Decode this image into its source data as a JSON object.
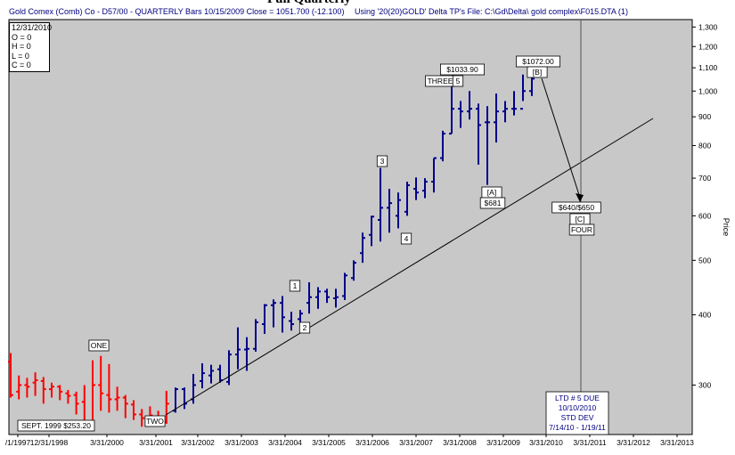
{
  "header": {
    "title": "Full Quarterly",
    "left_text": "Gold Comex (Comb) Co - D57/00 - QUARTERLY Bars  10/15/2009 Close = 1051.700 (-12.100)",
    "right_text": "Using '20(20)GOLD' Delta TP's    File: C:\\Gd\\Delta\\ gold complex\\F015.DTA (1)"
  },
  "ohlc_box": {
    "date": "12/31/2010",
    "o": "O = 0",
    "h": "H = 0",
    "l": "L = 0",
    "c": "C = 0"
  },
  "chart_data": {
    "type": "ohlc",
    "title": "",
    "ylabel": "Price",
    "xlabel": "",
    "y_scale": "log",
    "ylim": [
      245,
      1340
    ],
    "y_ticks": [
      300,
      400,
      500,
      600,
      700,
      800,
      900,
      1000,
      1100,
      1200,
      1300
    ],
    "y_tick_labels": [
      "300",
      "400",
      "500",
      "600",
      "700",
      "800",
      "900",
      "1,000",
      "1,100",
      "1,200",
      "1,300"
    ],
    "x_tick_labels": [
      "/1/1997",
      "12/31/1998",
      "3/31/2000",
      "3/31/2001",
      "3/31/2002",
      "3/31/2003",
      "3/31/2004",
      "3/31/2005",
      "3/31/2006",
      "3/31/2007",
      "3/31/2008",
      "3/31/2009",
      "3/31/2010",
      "3/31/2011",
      "3/31/2012",
      "3/31/2013"
    ],
    "colors": {
      "down_phase": "#ff0000",
      "up_phase": "#00008b",
      "background": "#c8c8c8"
    },
    "bars_red": [
      {
        "o": 330,
        "h": 342,
        "l": 285,
        "c": 288
      },
      {
        "o": 292,
        "h": 312,
        "l": 283,
        "c": 300
      },
      {
        "o": 300,
        "h": 309,
        "l": 285,
        "c": 298
      },
      {
        "o": 303,
        "h": 316,
        "l": 287,
        "c": 306
      },
      {
        "o": 305,
        "h": 310,
        "l": 278,
        "c": 295
      },
      {
        "o": 295,
        "h": 303,
        "l": 285,
        "c": 298
      },
      {
        "o": 298,
        "h": 300,
        "l": 282,
        "c": 292
      },
      {
        "o": 290,
        "h": 294,
        "l": 278,
        "c": 287
      },
      {
        "o": 288,
        "h": 292,
        "l": 266,
        "c": 278
      },
      {
        "o": 280,
        "h": 300,
        "l": 253,
        "c": 258
      },
      {
        "o": 258,
        "h": 332,
        "l": 253,
        "c": 300
      },
      {
        "o": 300,
        "h": 338,
        "l": 270,
        "c": 290
      },
      {
        "o": 288,
        "h": 327,
        "l": 268,
        "c": 283
      },
      {
        "o": 283,
        "h": 298,
        "l": 270,
        "c": 285
      },
      {
        "o": 285,
        "h": 288,
        "l": 262,
        "c": 278
      },
      {
        "o": 277,
        "h": 282,
        "l": 260,
        "c": 266
      },
      {
        "o": 266,
        "h": 272,
        "l": 253,
        "c": 262
      },
      {
        "o": 262,
        "h": 275,
        "l": 255,
        "c": 265
      },
      {
        "o": 258,
        "h": 270,
        "l": 253,
        "c": 256
      },
      {
        "o": 258,
        "h": 293,
        "l": 256,
        "c": 278
      }
    ],
    "bars_blue": [
      {
        "o": 270,
        "h": 297,
        "l": 268,
        "c": 295
      },
      {
        "o": 295,
        "h": 297,
        "l": 272,
        "c": 278
      },
      {
        "o": 283,
        "h": 314,
        "l": 278,
        "c": 300
      },
      {
        "o": 305,
        "h": 328,
        "l": 296,
        "c": 315
      },
      {
        "o": 312,
        "h": 326,
        "l": 302,
        "c": 318
      },
      {
        "o": 320,
        "h": 326,
        "l": 303,
        "c": 306
      },
      {
        "o": 304,
        "h": 346,
        "l": 300,
        "c": 340
      },
      {
        "o": 340,
        "h": 380,
        "l": 320,
        "c": 347
      },
      {
        "o": 347,
        "h": 365,
        "l": 318,
        "c": 348
      },
      {
        "o": 348,
        "h": 393,
        "l": 344,
        "c": 388
      },
      {
        "o": 385,
        "h": 418,
        "l": 370,
        "c": 416
      },
      {
        "o": 416,
        "h": 426,
        "l": 380,
        "c": 420
      },
      {
        "o": 420,
        "h": 432,
        "l": 372,
        "c": 396
      },
      {
        "o": 390,
        "h": 405,
        "l": 375,
        "c": 385
      },
      {
        "o": 393,
        "h": 408,
        "l": 378,
        "c": 402
      },
      {
        "o": 420,
        "h": 457,
        "l": 402,
        "c": 430
      },
      {
        "o": 430,
        "h": 448,
        "l": 410,
        "c": 440
      },
      {
        "o": 440,
        "h": 445,
        "l": 420,
        "c": 430
      },
      {
        "o": 428,
        "h": 445,
        "l": 412,
        "c": 430
      },
      {
        "o": 432,
        "h": 475,
        "l": 425,
        "c": 470
      },
      {
        "o": 465,
        "h": 500,
        "l": 460,
        "c": 495
      },
      {
        "o": 515,
        "h": 560,
        "l": 495,
        "c": 548
      },
      {
        "o": 555,
        "h": 600,
        "l": 530,
        "c": 598
      },
      {
        "o": 590,
        "h": 730,
        "l": 540,
        "c": 620
      },
      {
        "o": 620,
        "h": 670,
        "l": 560,
        "c": 632
      },
      {
        "o": 600,
        "h": 660,
        "l": 570,
        "c": 640
      },
      {
        "o": 610,
        "h": 690,
        "l": 600,
        "c": 680
      },
      {
        "o": 670,
        "h": 702,
        "l": 640,
        "c": 660
      },
      {
        "o": 665,
        "h": 700,
        "l": 645,
        "c": 690
      },
      {
        "o": 690,
        "h": 760,
        "l": 660,
        "c": 760
      },
      {
        "o": 760,
        "h": 850,
        "l": 750,
        "c": 840
      },
      {
        "o": 840,
        "h": 1033.9,
        "l": 840,
        "c": 930
      },
      {
        "o": 930,
        "h": 960,
        "l": 860,
        "c": 920
      },
      {
        "o": 920,
        "h": 1000,
        "l": 890,
        "c": 930
      },
      {
        "o": 930,
        "h": 950,
        "l": 740,
        "c": 870
      },
      {
        "o": 880,
        "h": 940,
        "l": 681,
        "c": 880
      },
      {
        "o": 880,
        "h": 990,
        "l": 810,
        "c": 920
      },
      {
        "o": 920,
        "h": 960,
        "l": 880,
        "c": 930
      },
      {
        "o": 930,
        "h": 1000,
        "l": 905,
        "c": 930
      },
      {
        "o": 930,
        "h": 1070,
        "l": 960,
        "c": 1000
      },
      {
        "o": 1000,
        "h": 1072,
        "l": 980,
        "c": 1052
      }
    ],
    "trendline": {
      "label": "",
      "from": {
        "x": "12/31/2000",
        "y": 252
      },
      "to": {
        "x": "3/31/2013",
        "y": 905
      }
    },
    "projection_line": {
      "x": "3/31/2011"
    },
    "wave_labels": [
      {
        "text": "ONE"
      },
      {
        "text": "TWO"
      },
      {
        "text": "1"
      },
      {
        "text": "2"
      },
      {
        "text": "3"
      },
      {
        "text": "4"
      },
      {
        "text": "THREE"
      },
      {
        "text": "5"
      },
      {
        "text": "$1033.90"
      },
      {
        "text": "[A]"
      },
      {
        "text": "$681"
      },
      {
        "text": "$1072.00"
      },
      {
        "text": "[B]"
      },
      {
        "text": "$640/$650"
      },
      {
        "text": "[C]"
      },
      {
        "text": "FOUR"
      }
    ],
    "sept_label": "SEPT. 1999  $253.20",
    "ltd_box": [
      "LTD # 5 DUE",
      "10/10/2010",
      "STD DEV",
      "7/14/10 - 1/19/11"
    ]
  }
}
